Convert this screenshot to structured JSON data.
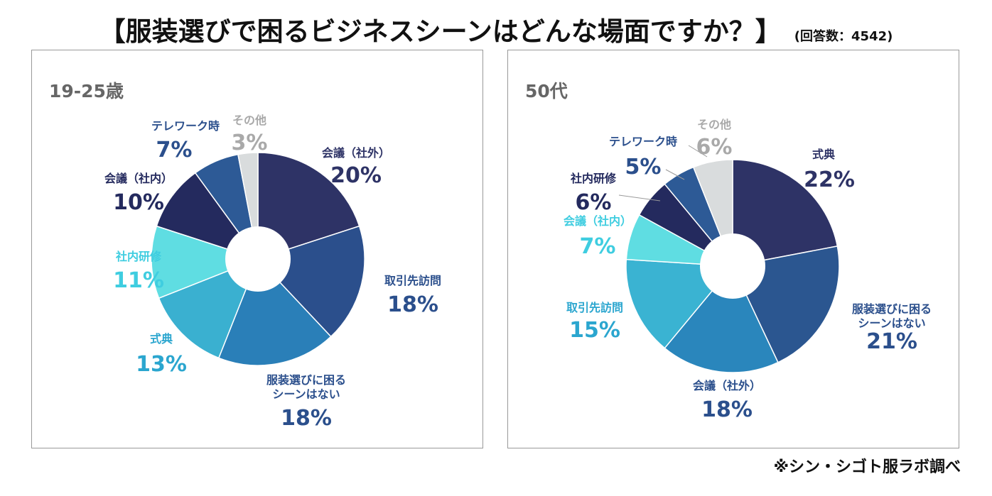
{
  "title": "【服装選びで困るビジネスシーンはどんな場面ですか？】",
  "respondents": "(回答数：4542)",
  "credit": "※シン・シゴト服ラボ調べ",
  "chart_data": [
    {
      "type": "pie",
      "variant": "donut",
      "title": "19-25歳",
      "slices": [
        {
          "label": "会議（社外）",
          "value": 20,
          "value_label": "20%",
          "color": "#2e3366",
          "label_color": "#2e3366"
        },
        {
          "label": "取引先訪問",
          "value": 18,
          "value_label": "18%",
          "color": "#2b4f8c",
          "label_color": "#2b4f8c"
        },
        {
          "label": "服装選びに困るシーンはない",
          "value": 18,
          "value_label": "18%",
          "color": "#2a7fb8",
          "label_color": "#2b4f8c"
        },
        {
          "label": "式典",
          "value": 13,
          "value_label": "13%",
          "color": "#3ab0d0",
          "label_color": "#2ba6cf"
        },
        {
          "label": "社内研修",
          "value": 11,
          "value_label": "11%",
          "color": "#5fdde2",
          "label_color": "#3fcde0"
        },
        {
          "label": "会議（社内）",
          "value": 10,
          "value_label": "10%",
          "color": "#242a5e",
          "label_color": "#242a5e"
        },
        {
          "label": "テレワーク時",
          "value": 7,
          "value_label": "7%",
          "color": "#2d5a96",
          "label_color": "#2b4f8c"
        },
        {
          "label": "その他",
          "value": 3,
          "value_label": "3%",
          "color": "#d9dcdd",
          "label_color": "#a9a9a9"
        }
      ]
    },
    {
      "type": "pie",
      "variant": "donut",
      "title": "50代",
      "slices": [
        {
          "label": "式典",
          "value": 22,
          "value_label": "22%",
          "color": "#2e3366",
          "label_color": "#2e3366"
        },
        {
          "label": "服装選びに困るシーンはない",
          "value": 21,
          "value_label": "21%",
          "color": "#2b5690",
          "label_color": "#2b4f8c"
        },
        {
          "label": "会議（社外）",
          "value": 18,
          "value_label": "18%",
          "color": "#2a86bc",
          "label_color": "#2b4f8c"
        },
        {
          "label": "取引先訪問",
          "value": 15,
          "value_label": "15%",
          "color": "#3ab3d2",
          "label_color": "#2ba6cf"
        },
        {
          "label": "会議（社内）",
          "value": 7,
          "value_label": "7%",
          "color": "#5fdde2",
          "label_color": "#3fcde0"
        },
        {
          "label": "社内研修",
          "value": 6,
          "value_label": "6%",
          "color": "#242a5e",
          "label_color": "#242a5e"
        },
        {
          "label": "テレワーク時",
          "value": 5,
          "value_label": "5%",
          "color": "#2d5a96",
          "label_color": "#2b4f8c"
        },
        {
          "label": "その他",
          "value": 6,
          "value_label": "6%",
          "color": "#d9dcdd",
          "label_color": "#a9a9a9"
        }
      ]
    }
  ]
}
